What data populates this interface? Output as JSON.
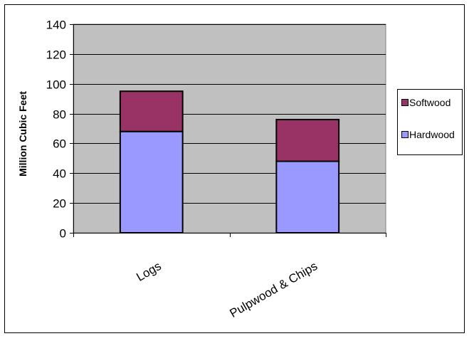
{
  "chart_data": {
    "type": "bar",
    "stacked": true,
    "categories": [
      "Logs",
      "Pulpwood & Chips"
    ],
    "series": [
      {
        "name": "Hardwood",
        "values": [
          68,
          48
        ],
        "color": "#9999ff"
      },
      {
        "name": "Softwood",
        "values": [
          27,
          28
        ],
        "color": "#993366"
      }
    ],
    "title": "",
    "xlabel": "",
    "ylabel": "Million Cubic Feet",
    "ylim": [
      0,
      140
    ],
    "yticks": [
      0,
      20,
      40,
      60,
      80,
      100,
      120,
      140
    ],
    "grid": true,
    "legend_position": "right",
    "legend_order": [
      "Softwood",
      "Hardwood"
    ],
    "plot_background": "#c0c0c0"
  }
}
